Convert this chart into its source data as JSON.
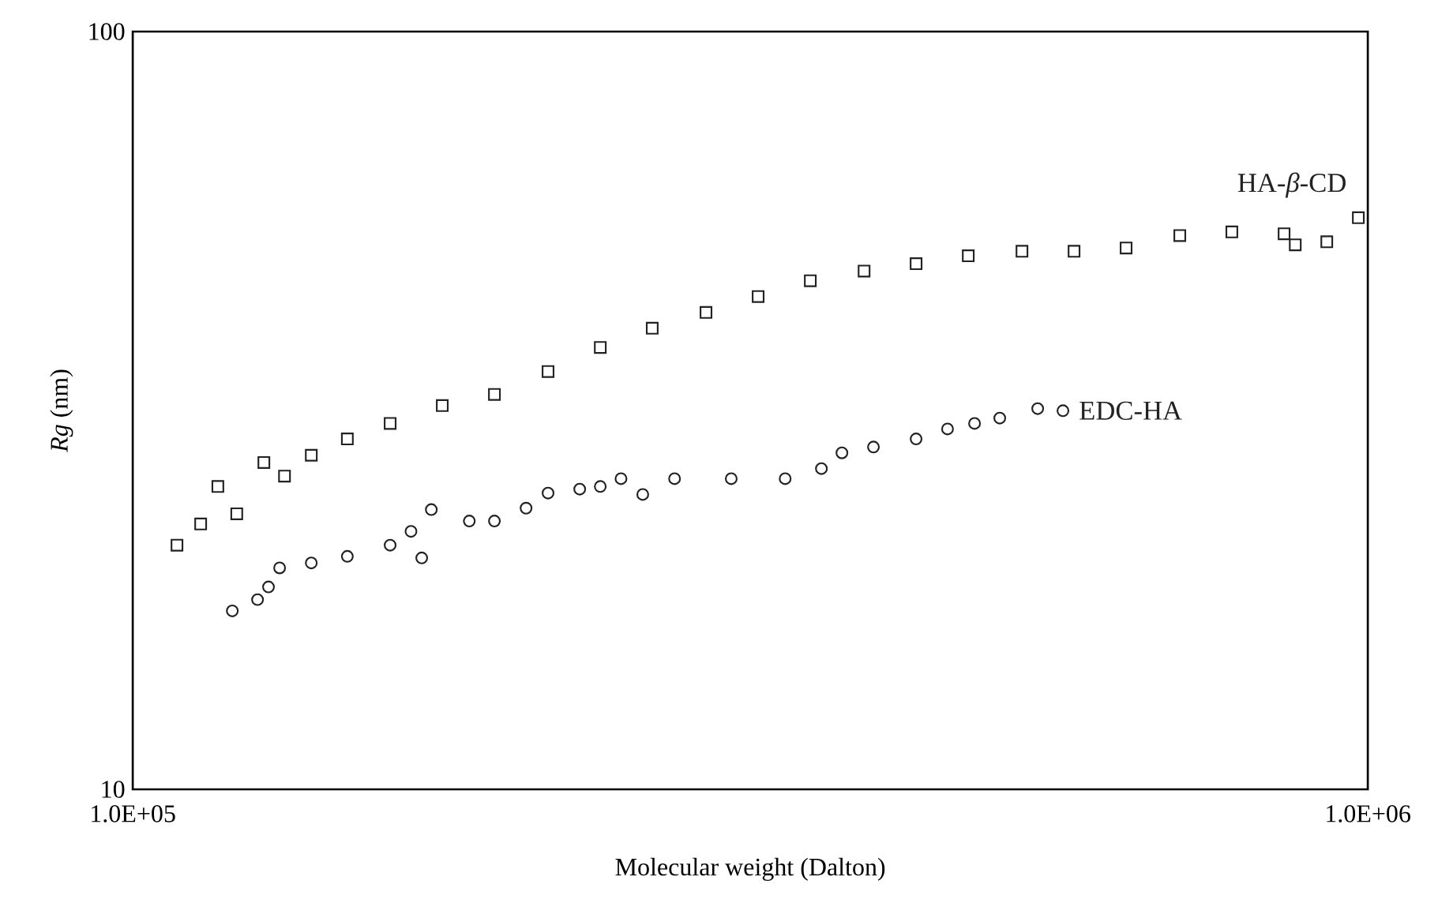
{
  "chart_data": {
    "type": "scatter",
    "xlabel": "Molecular weight (Dalton)",
    "ylabel": "*Rg* (nm)",
    "log": "xy",
    "xlim": [
      100000,
      1000000
    ],
    "ylim": [
      10,
      100
    ],
    "xticks": [
      {
        "value": 100000,
        "label": "1.0E+05"
      },
      {
        "value": 1000000,
        "label": "1.0E+06"
      }
    ],
    "yticks": [
      10,
      100
    ],
    "series": [
      {
        "name": "HA-*β*-CD",
        "color": "#222222",
        "marker": "square",
        "x": [
          108600,
          113500,
          117200,
          121400,
          127700,
          132700,
          139500,
          149200,
          161600,
          178100,
          196300,
          216900,
          239100,
          263400,
          291200,
          320900,
          353700,
          391000,
          430800,
          474800,
          524800,
          578300,
          637300,
          704400,
          776200,
          855500,
          873500,
          926400,
          982500
        ],
        "values": [
          21.0,
          22.4,
          25.1,
          23.1,
          27.0,
          25.9,
          27.6,
          29.0,
          30.4,
          32.1,
          33.2,
          35.6,
          38.3,
          40.6,
          42.6,
          44.7,
          46.9,
          48.3,
          49.4,
          50.6,
          51.3,
          51.3,
          51.8,
          53.8,
          54.4,
          54.1,
          52.3,
          52.8,
          56.8
        ]
      },
      {
        "name": "EDC-HA",
        "color": "#222222",
        "marker": "circle",
        "x": [
          120400,
          126200,
          128800,
          131500,
          139500,
          149200,
          161600,
          168000,
          171400,
          174500,
          187300,
          196300,
          208200,
          216900,
          230100,
          239100,
          248500,
          258800,
          274600,
          305200,
          337500,
          361100,
          375200,
          397900,
          430800,
          456800,
          480400,
          503500,
          540400,
          566500
        ],
        "values": [
          17.2,
          17.8,
          18.5,
          19.6,
          19.9,
          20.3,
          21.0,
          21.9,
          20.2,
          23.4,
          22.6,
          22.6,
          23.5,
          24.6,
          24.9,
          25.1,
          25.7,
          24.5,
          25.7,
          25.7,
          25.7,
          26.5,
          27.8,
          28.3,
          29.0,
          29.9,
          30.4,
          30.9,
          31.8,
          31.6
        ]
      }
    ]
  }
}
